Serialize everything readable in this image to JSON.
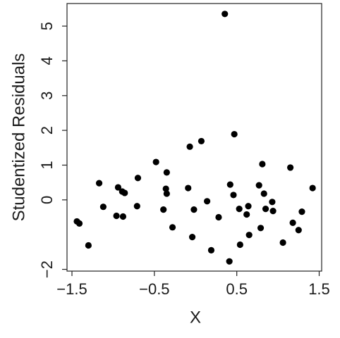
{
  "chart_data": {
    "type": "scatter",
    "x_label": "X",
    "y_label": "Studentized Residuals",
    "x": [
      0.355,
      0.47,
      0.07,
      -0.07,
      -0.48,
      -0.35,
      -0.7,
      -1.17,
      -0.94,
      -0.89,
      -0.86,
      -0.36,
      -0.35,
      -0.09,
      0.42,
      0.46,
      0.77,
      0.81,
      1.15,
      1.42,
      0.83,
      0.93,
      0.14,
      0.64,
      0.53,
      0.85,
      0.94,
      1.29,
      0.62,
      -0.02,
      -0.39,
      -0.71,
      -1.12,
      -0.96,
      -0.88,
      -1.44,
      -1.41,
      -0.28,
      0.28,
      1.18,
      0.79,
      1.25,
      0.65,
      -0.04,
      -1.3,
      0.54,
      1.06,
      0.19,
      0.41
    ],
    "values": [
      5.35,
      1.89,
      1.69,
      1.53,
      1.09,
      0.79,
      0.63,
      0.48,
      0.36,
      0.24,
      0.2,
      0.32,
      0.18,
      0.34,
      0.44,
      0.14,
      0.42,
      1.03,
      0.93,
      0.34,
      0.18,
      -0.06,
      -0.04,
      -0.18,
      -0.26,
      -0.26,
      -0.32,
      -0.34,
      -0.42,
      -0.28,
      -0.28,
      -0.18,
      -0.2,
      -0.46,
      -0.48,
      -0.62,
      -0.68,
      -0.79,
      -0.5,
      -0.66,
      -0.81,
      -0.87,
      -1.01,
      -1.07,
      -1.31,
      -1.29,
      -1.23,
      -1.45,
      -1.77
    ],
    "color": "#000000",
    "xlim": [
      -1.56,
      1.53
    ],
    "ylim": [
      -2.05,
      5.65
    ],
    "xticks": [
      {
        "value": -1.5,
        "label": "−1.5"
      },
      {
        "value": -0.5,
        "label": "−0.5"
      },
      0.5,
      1.5
    ],
    "yticks": [
      {
        "value": -2,
        "label": "−2"
      },
      0,
      1,
      2,
      3,
      4,
      5
    ]
  }
}
